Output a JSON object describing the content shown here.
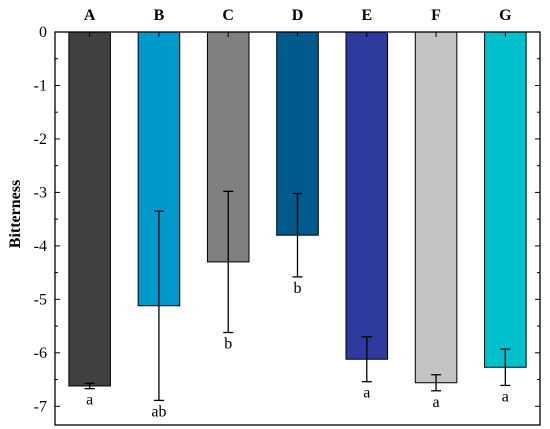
{
  "chart_data": {
    "type": "bar",
    "ylabel": "Bitterness",
    "xlabel": "",
    "ylim": [
      -7.35,
      0
    ],
    "yticks": [
      0,
      -1,
      -2,
      -3,
      -4,
      -5,
      -6,
      -7
    ],
    "categories": [
      "A",
      "B",
      "C",
      "D",
      "E",
      "F",
      "G"
    ],
    "values": [
      -6.62,
      -5.12,
      -4.3,
      -3.8,
      -6.12,
      -6.56,
      -6.27
    ],
    "errors": [
      0.05,
      1.77,
      1.32,
      0.78,
      0.42,
      0.15,
      0.34
    ],
    "significance": [
      "a",
      "ab",
      "b",
      "b",
      "a",
      "a",
      "a"
    ],
    "colors": [
      "#404040",
      "#0099CC",
      "#808080",
      "#005A8C",
      "#2E3A9E",
      "#C4C4C4",
      "#00C0CC"
    ],
    "axis_color": "#000000"
  }
}
